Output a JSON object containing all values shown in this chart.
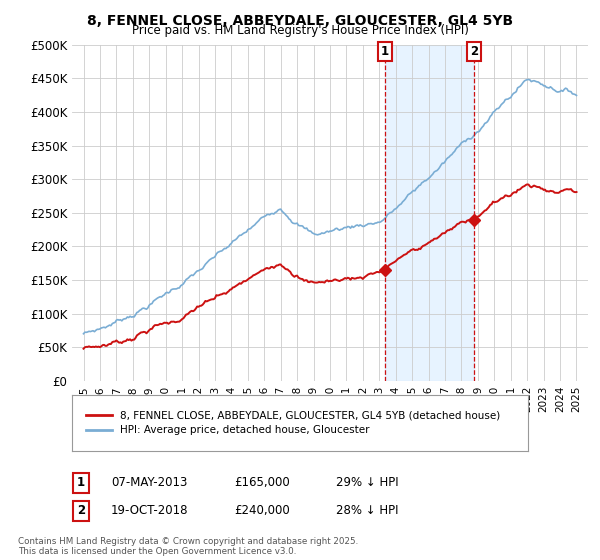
{
  "title1": "8, FENNEL CLOSE, ABBEYDALE, GLOUCESTER, GL4 5YB",
  "title2": "Price paid vs. HM Land Registry's House Price Index (HPI)",
  "ylim": [
    0,
    500000
  ],
  "yticks": [
    0,
    50000,
    100000,
    150000,
    200000,
    250000,
    300000,
    350000,
    400000,
    450000,
    500000
  ],
  "ytick_labels": [
    "£0",
    "£50K",
    "£100K",
    "£150K",
    "£200K",
    "£250K",
    "£300K",
    "£350K",
    "£400K",
    "£450K",
    "£500K"
  ],
  "hpi_color": "#7aadd4",
  "price_color": "#cc1111",
  "marker1_value": 165000,
  "marker1_year": "07-MAY-2013",
  "marker1_pct": "29% ↓ HPI",
  "marker1_x": 2013.35,
  "marker2_value": 240000,
  "marker2_year": "19-OCT-2018",
  "marker2_pct": "28% ↓ HPI",
  "marker2_x": 2018.79,
  "legend_label1": "8, FENNEL CLOSE, ABBEYDALE, GLOUCESTER, GL4 5YB (detached house)",
  "legend_label2": "HPI: Average price, detached house, Gloucester",
  "footer1": "Contains HM Land Registry data © Crown copyright and database right 2025.",
  "footer2": "This data is licensed under the Open Government Licence v3.0.",
  "background_color": "#ffffff",
  "grid_color": "#cccccc",
  "shade_color": "#ddeeff",
  "vline_color": "#cc1111"
}
